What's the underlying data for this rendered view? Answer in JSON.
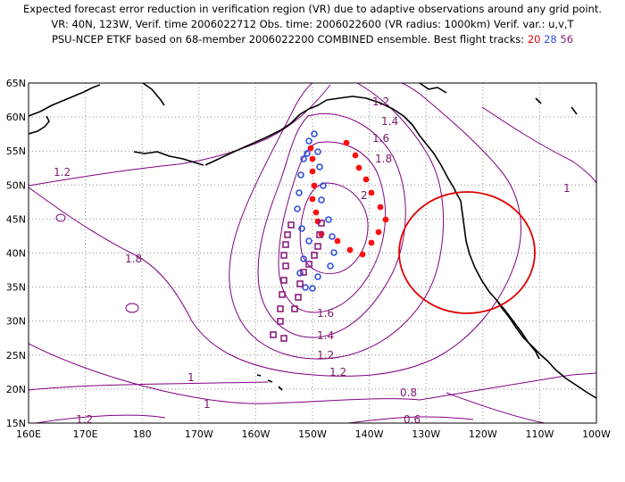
{
  "header": {
    "line1": "Expected forecast error reduction in verification region (VR) due to adaptive observations around any grid point.",
    "line2": "VR: 40N, 123W, Verif. time 2006022712   Obs. time: 2006022600 (VR radius: 1000km)   Verif. var.: u,v,T",
    "line3_prefix": "PSU-NCEP ETKF based on 68-member 2006022200 COMBINED ensemble.  Best flight tracks: ",
    "track_red_label": "20",
    "track_blue_label": "28",
    "track_purple_label": "56"
  },
  "map": {
    "lon_ticks": [
      "160E",
      "170E",
      "180",
      "170W",
      "160W",
      "150W",
      "140W",
      "130W",
      "120W",
      "110W",
      "100W"
    ],
    "lat_ticks": [
      "65N",
      "60N",
      "55N",
      "50N",
      "45N",
      "40N",
      "35N",
      "30N",
      "25N",
      "20N",
      "15N"
    ],
    "contour_labels": [
      "1.2",
      "1.4",
      "1.6",
      "1.8",
      "2",
      "1",
      "1.2",
      "1.8",
      "1.6",
      "1.4",
      "1.2",
      "1.2",
      "1",
      "1",
      "0.8",
      "0.6",
      "1.2"
    ],
    "colors": {
      "contour": "#800080",
      "coast": "#000000",
      "grid": "#8c8c8c",
      "vr_circle": "#e00000",
      "track_red": "#ff1010",
      "track_blue": "#2f4fe0",
      "track_purple": "#8a1f7e"
    },
    "verification_region": {
      "center": "40N, 123W",
      "radius": "1000km"
    }
  }
}
